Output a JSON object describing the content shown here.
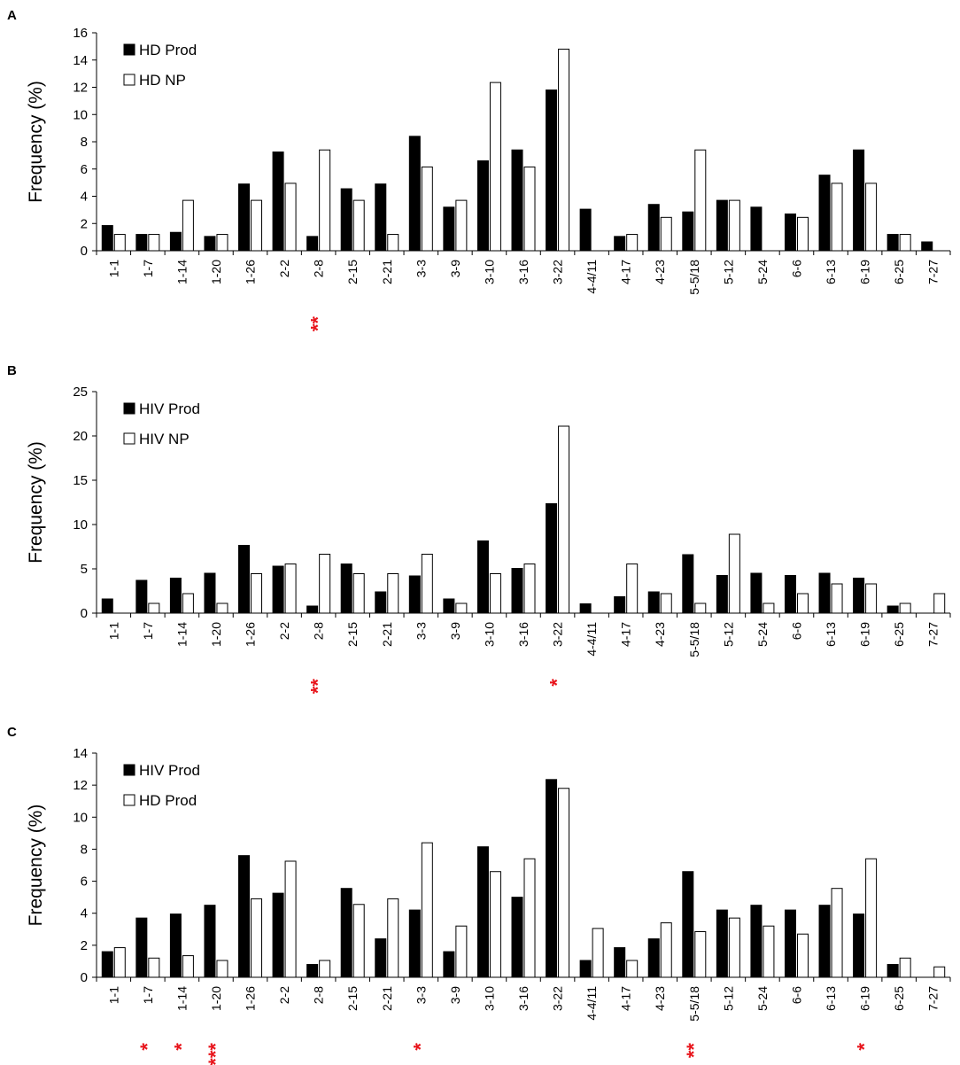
{
  "colors": {
    "series_filled": "#000000",
    "series_open": "#ffffff",
    "significance": "#e8141b",
    "axis": "#000000"
  },
  "chart_data": [
    {
      "panel": "A",
      "type": "bar",
      "ylabel": "Frequency (%)",
      "ylim": [
        0,
        16
      ],
      "yticks": [
        0,
        2,
        4,
        6,
        8,
        10,
        12,
        14,
        16
      ],
      "categories": [
        "1-1",
        "1-7",
        "1-14",
        "1-20",
        "1-26",
        "2-2",
        "2-8",
        "2-15",
        "2-21",
        "3-3",
        "3-9",
        "3-10",
        "3-16",
        "3-22",
        "4-4/11",
        "4-17",
        "4-23",
        "5-5/18",
        "5-12",
        "5-24",
        "6-6",
        "6-13",
        "6-19",
        "6-25",
        "7-27"
      ],
      "series": [
        {
          "name": "HD Prod",
          "fill": "black",
          "values": [
            1.85,
            1.2,
            1.35,
            1.05,
            4.9,
            7.25,
            1.05,
            4.55,
            4.9,
            8.4,
            3.2,
            6.6,
            7.4,
            11.8,
            3.05,
            1.05,
            3.4,
            2.85,
            3.7,
            3.2,
            2.7,
            5.55,
            7.4,
            1.2,
            0.65
          ]
        },
        {
          "name": "HD NP",
          "fill": "white",
          "values": [
            1.2,
            1.2,
            3.7,
            1.2,
            3.7,
            4.95,
            7.4,
            3.7,
            1.2,
            6.15,
            3.7,
            12.35,
            6.15,
            14.8,
            0,
            1.2,
            2.45,
            7.4,
            3.7,
            0,
            2.45,
            4.95,
            4.95,
            1.2,
            0
          ]
        }
      ],
      "significance": [
        {
          "category": "2-8",
          "mark": "**"
        }
      ]
    },
    {
      "panel": "B",
      "type": "bar",
      "ylabel": "Frequency (%)",
      "ylim": [
        0,
        25
      ],
      "yticks": [
        0,
        5,
        10,
        15,
        20,
        25
      ],
      "categories": [
        "1-1",
        "1-7",
        "1-14",
        "1-20",
        "1-26",
        "2-2",
        "2-8",
        "2-15",
        "2-21",
        "3-3",
        "3-9",
        "3-10",
        "3-16",
        "3-22",
        "4-4/11",
        "4-17",
        "4-23",
        "5-5/18",
        "5-12",
        "5-24",
        "6-6",
        "6-13",
        "6-19",
        "6-25",
        "7-27"
      ],
      "series": [
        {
          "name": "HIV Prod",
          "fill": "black",
          "values": [
            1.6,
            3.7,
            3.95,
            4.5,
            7.65,
            5.3,
            0.8,
            5.55,
            2.4,
            4.2,
            1.6,
            8.15,
            5.05,
            12.35,
            1.05,
            1.85,
            2.4,
            6.6,
            4.25,
            4.5,
            4.25,
            4.5,
            3.95,
            0.8,
            0
          ]
        },
        {
          "name": "HIV NP",
          "fill": "white",
          "values": [
            0,
            1.1,
            2.2,
            1.1,
            4.45,
            5.55,
            6.65,
            4.45,
            4.45,
            6.65,
            1.1,
            4.45,
            5.55,
            21.1,
            0,
            5.55,
            2.2,
            1.1,
            8.9,
            1.1,
            2.2,
            3.3,
            3.3,
            1.1,
            2.2
          ]
        }
      ],
      "significance": [
        {
          "category": "2-8",
          "mark": "**"
        },
        {
          "category": "3-22",
          "mark": "*"
        }
      ]
    },
    {
      "panel": "C",
      "type": "bar",
      "ylabel": "Frequency (%)",
      "ylim": [
        0,
        14
      ],
      "yticks": [
        0,
        2,
        4,
        6,
        8,
        10,
        12,
        14
      ],
      "categories": [
        "1-1",
        "1-7",
        "1-14",
        "1-20",
        "1-26",
        "2-2",
        "2-8",
        "2-15",
        "2-21",
        "3-3",
        "3-9",
        "3-10",
        "3-16",
        "3-22",
        "4-4/11",
        "4-17",
        "4-23",
        "5-5/18",
        "5-12",
        "5-24",
        "6-6",
        "6-13",
        "6-19",
        "6-25",
        "7-27"
      ],
      "series": [
        {
          "name": "HIV Prod",
          "fill": "black",
          "values": [
            1.6,
            3.7,
            3.95,
            4.5,
            7.6,
            5.25,
            0.8,
            5.55,
            2.4,
            4.2,
            1.6,
            8.15,
            5.0,
            12.35,
            1.05,
            1.85,
            2.4,
            6.6,
            4.2,
            4.5,
            4.2,
            4.5,
            3.95,
            0.8,
            0
          ]
        },
        {
          "name": "HD Prod",
          "fill": "white",
          "values": [
            1.85,
            1.2,
            1.35,
            1.05,
            4.9,
            7.25,
            1.05,
            4.55,
            4.9,
            8.4,
            3.2,
            6.6,
            7.4,
            11.8,
            3.05,
            1.05,
            3.4,
            2.85,
            3.7,
            3.2,
            2.7,
            5.55,
            7.4,
            1.2,
            0.65
          ]
        }
      ],
      "significance": [
        {
          "category": "1-7",
          "mark": "*"
        },
        {
          "category": "1-14",
          "mark": "*"
        },
        {
          "category": "1-20",
          "mark": "***"
        },
        {
          "category": "3-3",
          "mark": "*"
        },
        {
          "category": "5-5/18",
          "mark": "**"
        },
        {
          "category": "6-19",
          "mark": "*"
        }
      ]
    }
  ]
}
